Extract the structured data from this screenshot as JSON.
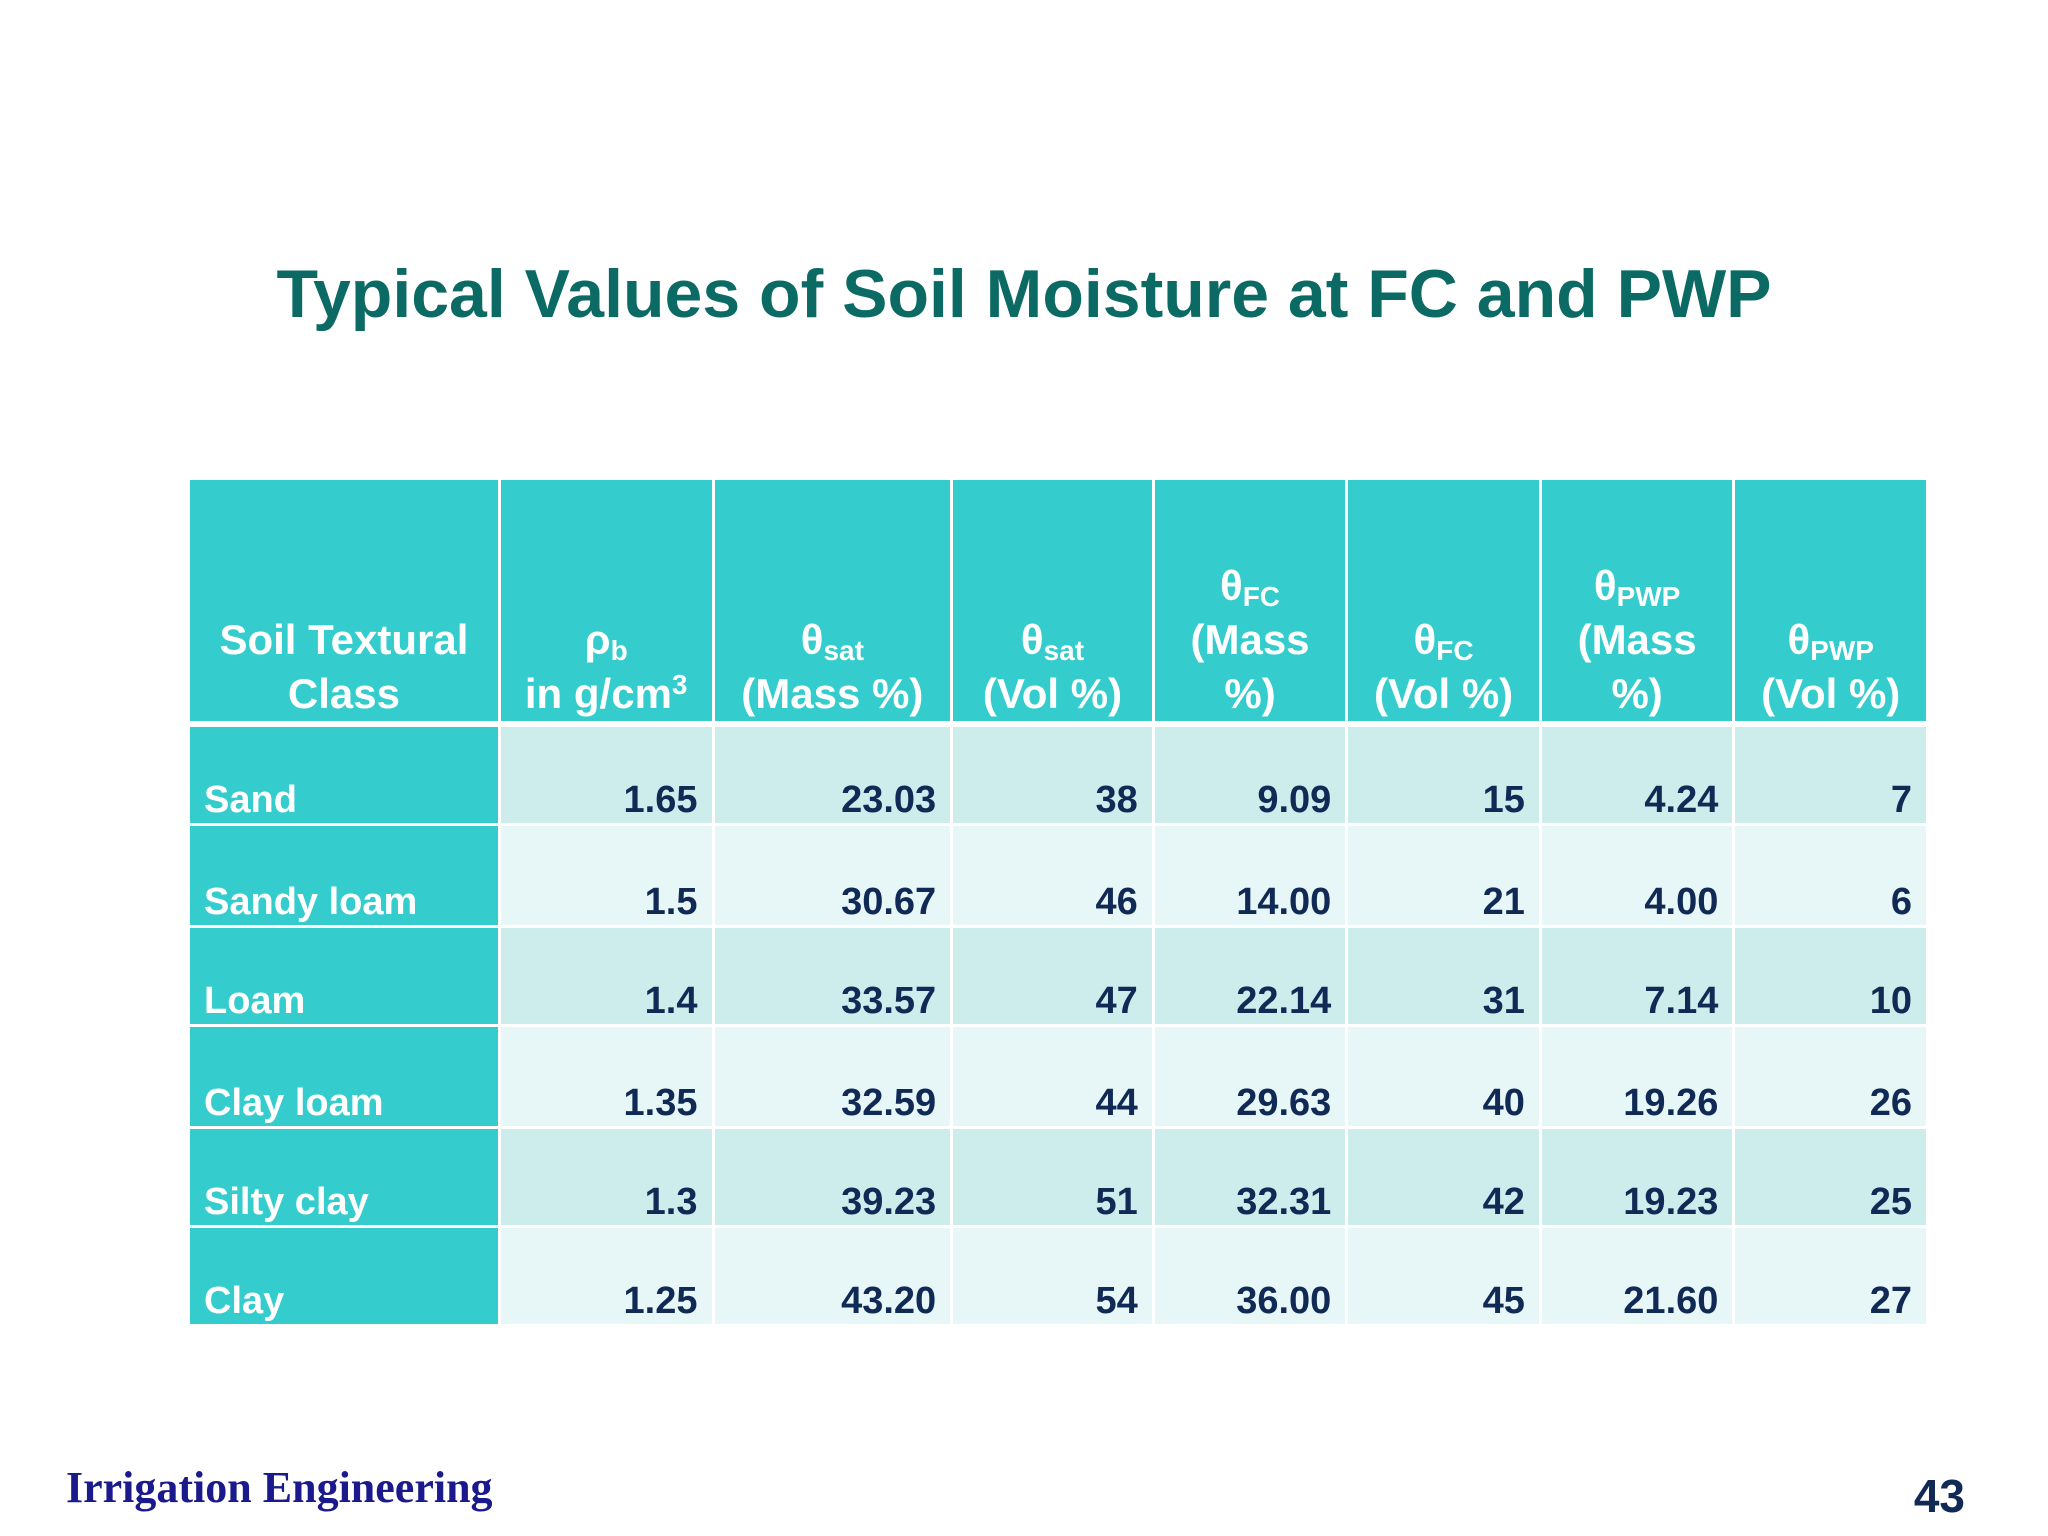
{
  "title": "Typical Values of Soil Moisture at FC and PWP",
  "table": {
    "headers": {
      "soil_class_line1": "Soil Textural",
      "soil_class_line2": "Class",
      "rho_symbol": "ρ",
      "rho_sub": "b",
      "rho_unit_prefix": "in g/cm",
      "rho_unit_sup": "3",
      "theta": "θ",
      "sat_sub": "sat",
      "fc_sub": "FC",
      "pwp_sub": "PWP",
      "mass_pct": "(Mass %)",
      "vol_pct": "(Vol %)",
      "mass_open": "(Mass",
      "pct_close": "%)"
    },
    "rows": [
      {
        "soil": "Sand",
        "rho_b": "1.65",
        "sat_mass": "23.03",
        "sat_vol": "38",
        "fc_mass": "9.09",
        "fc_vol": "15",
        "pwp_mass": "4.24",
        "pwp_vol": "7"
      },
      {
        "soil": "Sandy loam",
        "rho_b": "1.5",
        "sat_mass": "30.67",
        "sat_vol": "46",
        "fc_mass": "14.00",
        "fc_vol": "21",
        "pwp_mass": "4.00",
        "pwp_vol": "6"
      },
      {
        "soil": "Loam",
        "rho_b": "1.4",
        "sat_mass": "33.57",
        "sat_vol": "47",
        "fc_mass": "22.14",
        "fc_vol": "31",
        "pwp_mass": "7.14",
        "pwp_vol": "10"
      },
      {
        "soil": "Clay loam",
        "rho_b": "1.35",
        "sat_mass": "32.59",
        "sat_vol": "44",
        "fc_mass": "29.63",
        "fc_vol": "40",
        "pwp_mass": "19.26",
        "pwp_vol": "26"
      },
      {
        "soil": "Silty clay",
        "rho_b": "1.3",
        "sat_mass": "39.23",
        "sat_vol": "51",
        "fc_mass": "32.31",
        "fc_vol": "42",
        "pwp_mass": "19.23",
        "pwp_vol": "25"
      },
      {
        "soil": "Clay",
        "rho_b": "1.25",
        "sat_mass": "43.20",
        "sat_vol": "54",
        "fc_mass": "36.00",
        "fc_vol": "45",
        "pwp_mass": "21.60",
        "pwp_vol": "27"
      }
    ]
  },
  "footer": {
    "course": "Irrigation Engineering",
    "page_number": "43"
  },
  "colors": {
    "title": "#0b6b64",
    "header_bg": "#34cccc",
    "row_odd": "#cdecec",
    "row_even": "#e7f6f6",
    "cell_text": "#102a55",
    "footer_course": "#1a1a8c"
  }
}
